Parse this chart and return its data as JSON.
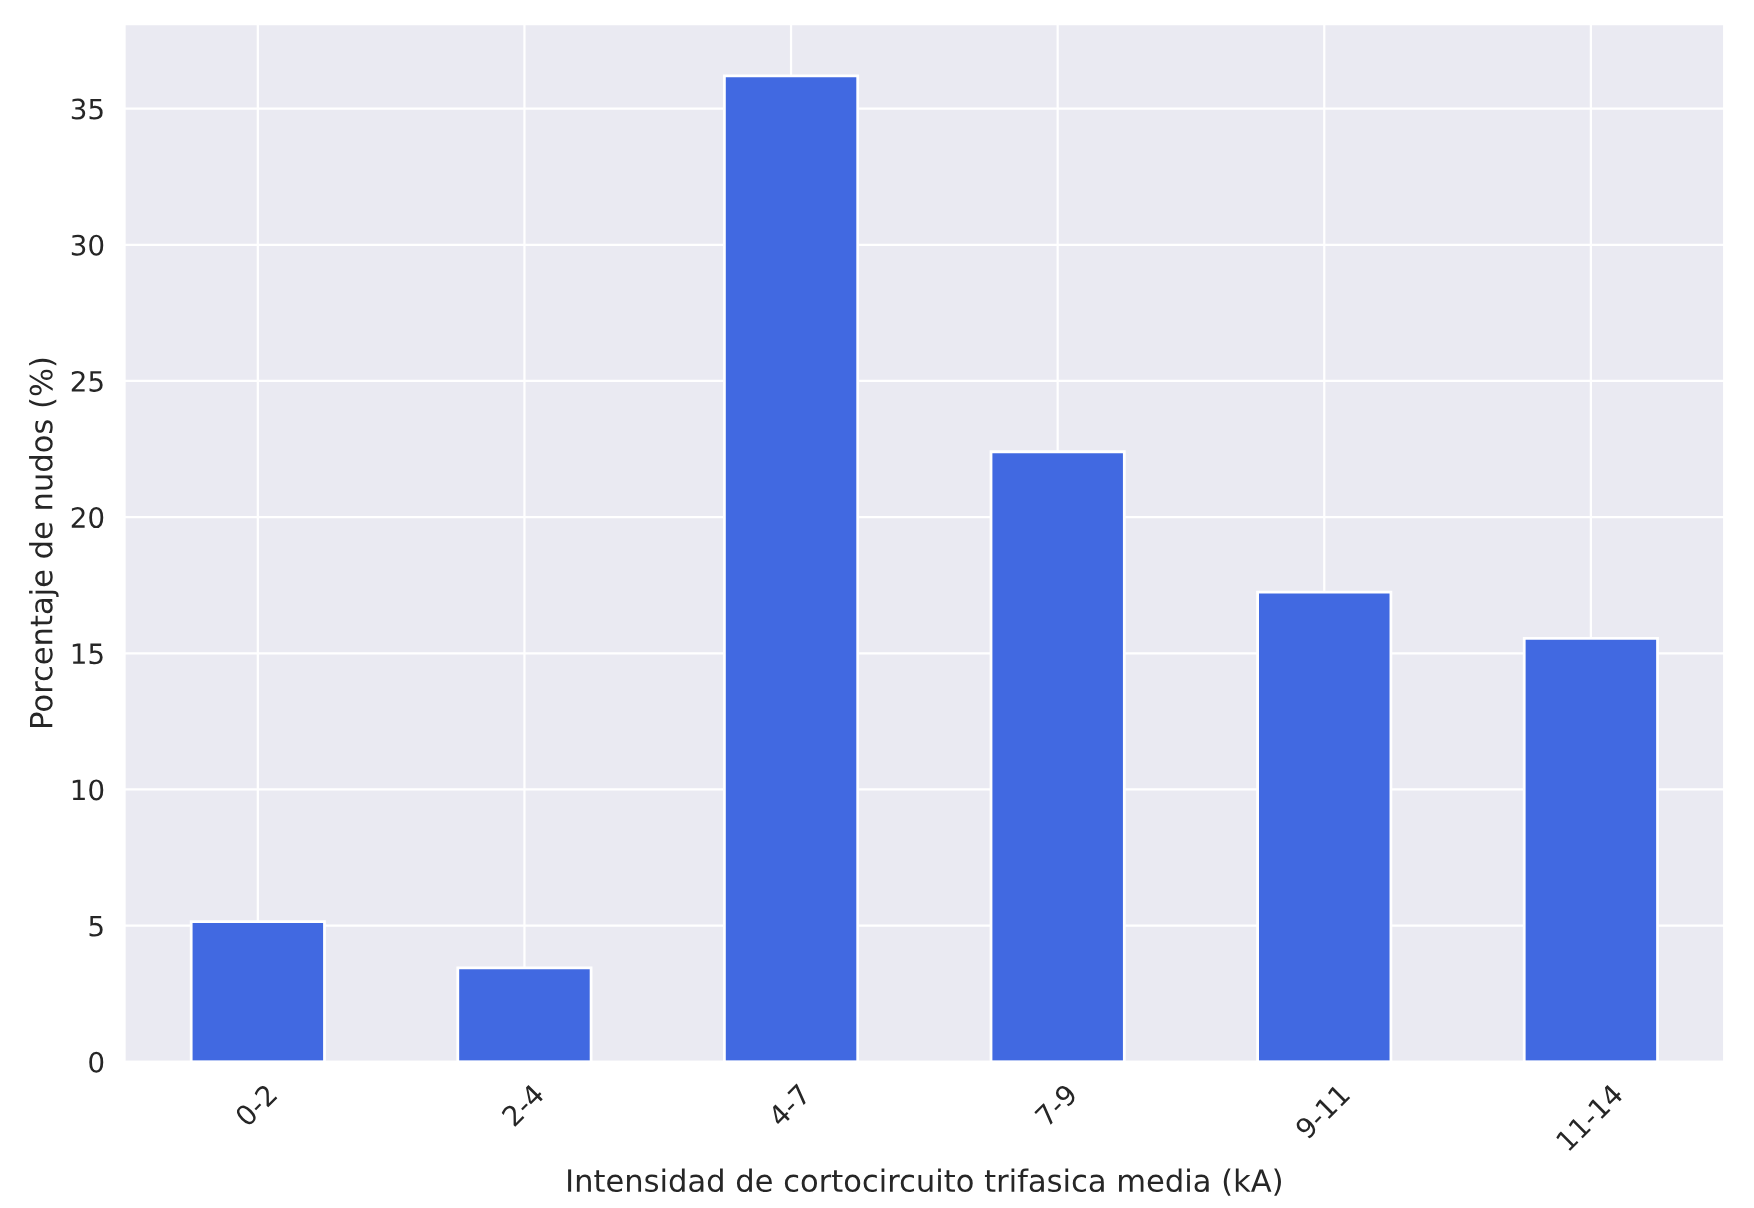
{
  "chart_data": {
    "type": "bar",
    "xlabel": "Intensidad de cortocircuito trifasica media (kA)",
    "ylabel": "Porcentaje de nudos (%)",
    "categories": [
      "0-2",
      "2-4",
      "4-7",
      "7-9",
      "9-11",
      "11-14"
    ],
    "values": [
      5.15,
      3.45,
      36.2,
      22.4,
      17.25,
      15.55
    ],
    "color": "#4169e1",
    "ylim": [
      0,
      38.1
    ],
    "yticks": [
      0,
      5,
      10,
      15,
      20,
      25,
      30,
      35
    ],
    "grid": true
  }
}
